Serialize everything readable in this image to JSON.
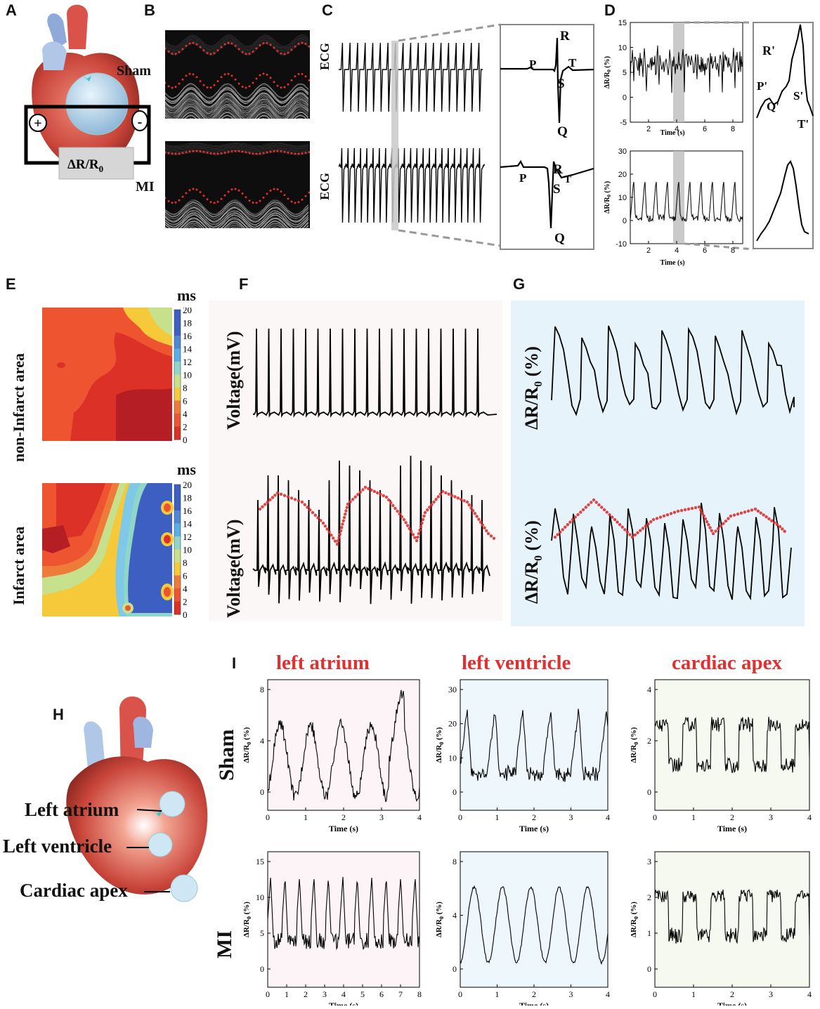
{
  "panels": {
    "A": "A",
    "B": "B",
    "C": "C",
    "D": "D",
    "E": "E",
    "F": "F",
    "G": "G",
    "H": "H",
    "I": "I"
  },
  "A": {
    "formula_main": "ΔR/R",
    "formula_sub": "0",
    "plus": "+",
    "minus": "-"
  },
  "B": {
    "sham": "Sham",
    "mi": "MI"
  },
  "C": {
    "ecg": "ECG",
    "top_labels": {
      "P": "P",
      "R": "R",
      "T": "T",
      "S": "S",
      "Q": "Q"
    },
    "bot_labels": {
      "P": "P",
      "R": "R",
      "T": "T",
      "S": "S",
      "Q": "Q"
    }
  },
  "D": {
    "ylabel": "ΔR/R",
    "ysub": "0",
    "yunit": " (%)",
    "xlabel": "Time (s)",
    "top_yticks": [
      "15",
      "10",
      "5",
      "0",
      "-5"
    ],
    "bot_yticks": [
      "30",
      "20",
      "10",
      "0",
      "-10"
    ],
    "xticks": [
      "2",
      "4",
      "6",
      "8"
    ],
    "wave_labels": {
      "R": "R'",
      "P": "P'",
      "Q": "Q'",
      "S": "S'",
      "T": "T'"
    }
  },
  "E": {
    "unit": "ms",
    "row1": "non-Infarct area",
    "row2": "Infarct area",
    "colorbar_ticks": [
      "20",
      "18",
      "16",
      "14",
      "12",
      "10",
      "8",
      "6",
      "4",
      "2",
      "0"
    ]
  },
  "F": {
    "ylabel": "Voltage(mV)"
  },
  "G": {
    "ylabel_main": "ΔR/R",
    "ylabel_sub": "0",
    "ylabel_unit": " (%)"
  },
  "H": {
    "la": "Left atrium",
    "lv": "Left ventricle",
    "ca": "Cardiac apex"
  },
  "I": {
    "cols": [
      "left atrium",
      "left ventricle",
      "cardiac apex"
    ],
    "rows": [
      "Sham",
      "MI"
    ],
    "xlabel": "Time (s)",
    "ylabel": "ΔR/R",
    "ysub": "0",
    "yunit": " (%)",
    "xticks4": [
      "0",
      "1",
      "2",
      "3",
      "4"
    ],
    "xticks8": [
      "0",
      "1",
      "2",
      "3",
      "4",
      "5",
      "6",
      "7",
      "8"
    ],
    "yticks": {
      "sham_la": [
        "8",
        "4",
        "0"
      ],
      "sham_lv": [
        "30",
        "20",
        "10",
        "0"
      ],
      "sham_ca": [
        "4",
        "2",
        "0"
      ],
      "mi_la": [
        "15",
        "10",
        "5",
        "0"
      ],
      "mi_lv": [
        "8",
        "4",
        "0"
      ],
      "mi_ca": [
        "3",
        "2",
        "1",
        "0"
      ]
    }
  },
  "colors": {
    "accent_red": "#e03030",
    "f_bg": "#fbf7f7",
    "g_bg": "#e6f3fb",
    "pink_bg": "#fcf4f6",
    "blue_bg": "#eef7fb",
    "green_bg": "#f5f9f0"
  }
}
